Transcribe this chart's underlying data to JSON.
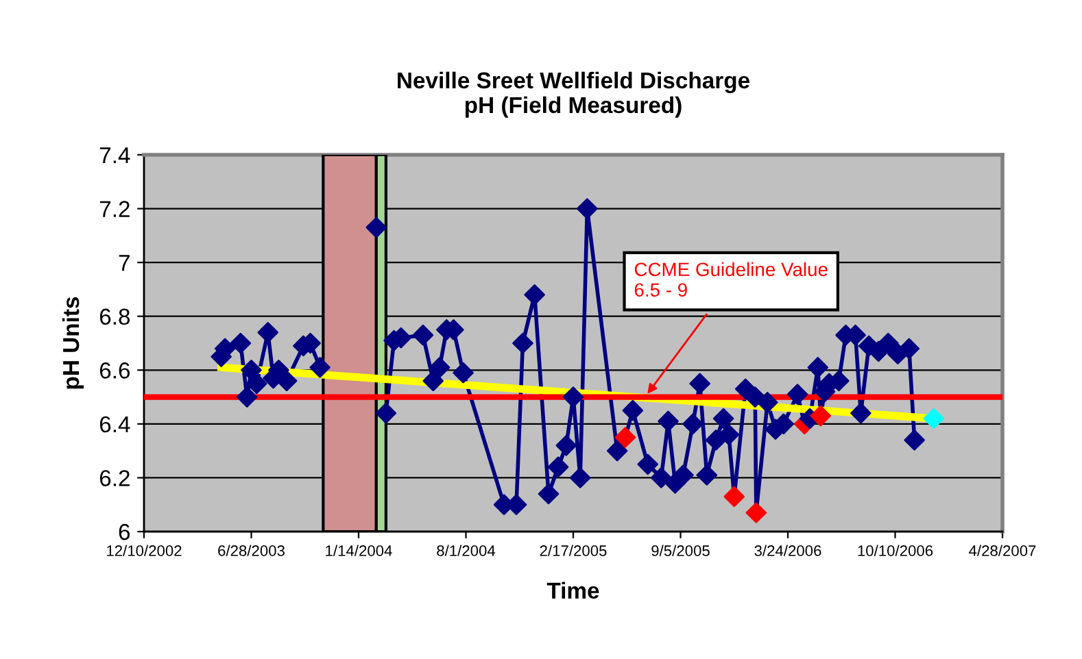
{
  "chart_data": {
    "type": "line",
    "title": "Neville Sreet Wellfield Discharge\npH (Field Measured)",
    "xlabel": "Time",
    "ylabel": "pH Units",
    "xlim": [
      "2002-12-10",
      "2007-04-28"
    ],
    "xticks": [
      {
        "value": "2002-12-10",
        "label": "12/10/2002"
      },
      {
        "value": "2003-06-28",
        "label": "6/28/2003"
      },
      {
        "value": "2004-01-14",
        "label": "1/14/2004"
      },
      {
        "value": "2004-08-01",
        "label": "8/1/2004"
      },
      {
        "value": "2005-02-17",
        "label": "2/17/2005"
      },
      {
        "value": "2005-09-05",
        "label": "9/5/2005"
      },
      {
        "value": "2006-03-24",
        "label": "3/24/2006"
      },
      {
        "value": "2006-10-10",
        "label": "10/10/2006"
      },
      {
        "value": "2007-04-28",
        "label": "4/28/2007"
      }
    ],
    "ylim": [
      6,
      7.4
    ],
    "yticks": [
      6,
      6.2,
      6.4,
      6.6,
      6.8,
      7,
      7.2,
      7.4
    ],
    "grid": "y",
    "legend": false,
    "marker": "diamond",
    "line_style": "solid",
    "series": [
      {
        "color": "#000080",
        "x": [
          "2003-05-03",
          "2003-05-10",
          "2003-06-08",
          "2003-06-20",
          "2003-06-28",
          "2003-07-08",
          "2003-07-29",
          "2003-08-08",
          "2003-08-18",
          "2003-09-02",
          "2003-10-03",
          "2003-10-16",
          "2003-11-03",
          "2004-02-16",
          "2004-03-05",
          "2004-03-20",
          "2004-04-02",
          "2004-05-13",
          "2004-06-01",
          "2004-06-13",
          "2004-06-26",
          "2004-07-09",
          "2004-07-27",
          "2004-10-11",
          "2004-11-03",
          "2004-11-15",
          "2004-12-07",
          "2005-01-02",
          "2005-01-20",
          "2005-02-04",
          "2005-02-17",
          "2005-03-02",
          "2005-03-15",
          "2005-05-10",
          "2005-05-25",
          "2005-06-08",
          "2005-07-06",
          "2005-07-31",
          "2005-08-13",
          "2005-08-26",
          "2005-09-10",
          "2005-09-28",
          "2005-10-11",
          "2005-10-24",
          "2005-11-10",
          "2005-11-24",
          "2005-12-04",
          "2005-12-14",
          "2006-01-04",
          "2006-01-22",
          "2006-01-24",
          "2006-02-14",
          "2006-03-01",
          "2006-03-16",
          "2006-04-11",
          "2006-04-24",
          "2006-05-04",
          "2006-05-19",
          "2006-05-24",
          "2006-06-01",
          "2006-06-09",
          "2006-06-27",
          "2006-07-10",
          "2006-07-28",
          "2006-08-07",
          "2006-08-22",
          "2006-09-09",
          "2006-09-27",
          "2006-10-15",
          "2006-11-05",
          "2006-11-15"
        ],
        "values": [
          6.65,
          6.68,
          6.7,
          6.5,
          6.6,
          6.55,
          6.74,
          6.57,
          6.6,
          6.56,
          6.69,
          6.7,
          6.61,
          7.13,
          6.44,
          6.71,
          6.72,
          6.73,
          6.56,
          6.61,
          6.75,
          6.75,
          6.59,
          6.1,
          6.1,
          6.7,
          6.88,
          6.14,
          6.24,
          6.32,
          6.5,
          6.2,
          7.2,
          6.3,
          6.35,
          6.45,
          6.25,
          6.2,
          6.41,
          6.18,
          6.21,
          6.4,
          6.55,
          6.21,
          6.34,
          6.42,
          6.36,
          6.13,
          6.53,
          6.5,
          6.07,
          6.48,
          6.38,
          6.4,
          6.51,
          6.4,
          6.42,
          6.61,
          6.43,
          6.52,
          6.55,
          6.56,
          6.73,
          6.73,
          6.44,
          6.69,
          6.67,
          6.7,
          6.66,
          6.68,
          6.34
        ],
        "colors": [
          "#000080",
          "#000080",
          "#000080",
          "#000080",
          "#000080",
          "#000080",
          "#000080",
          "#000080",
          "#000080",
          "#000080",
          "#000080",
          "#000080",
          "#000080",
          "#000080",
          "#000080",
          "#000080",
          "#000080",
          "#000080",
          "#000080",
          "#000080",
          "#000080",
          "#000080",
          "#000080",
          "#000080",
          "#000080",
          "#000080",
          "#000080",
          "#000080",
          "#000080",
          "#000080",
          "#000080",
          "#000080",
          "#000080",
          "#000080",
          "#ff0000",
          "#000080",
          "#000080",
          "#000080",
          "#000080",
          "#000080",
          "#000080",
          "#000080",
          "#000080",
          "#000080",
          "#000080",
          "#000080",
          "#000080",
          "#ff0000",
          "#000080",
          "#000080",
          "#ff0000",
          "#000080",
          "#000080",
          "#000080",
          "#000080",
          "#ff0000",
          "#000080",
          "#000080",
          "#ff0000",
          "#000080",
          "#000080",
          "#000080",
          "#000080",
          "#000080",
          "#000080",
          "#000080",
          "#000080",
          "#000080",
          "#000080",
          "#000080",
          "#000080"
        ]
      },
      {
        "color": "#ffff00",
        "marker": "none",
        "x": [
          "2003-05-03",
          "2006-12-21"
        ],
        "values": [
          6.61,
          6.42
        ]
      },
      {
        "type": "scatter",
        "color": "#00ffff",
        "x": [
          "2006-12-21"
        ],
        "values": [
          6.42
        ]
      }
    ],
    "ref_lines": [
      {
        "axis": "y",
        "value": 6.5,
        "color": "#ff0000",
        "line_style": "solid"
      }
    ],
    "bands": [
      {
        "axis": "x",
        "from": "2003-11-09",
        "to": "2004-02-16",
        "color": "#d09090"
      },
      {
        "axis": "x",
        "from": "2004-02-16",
        "to": "2004-03-05",
        "color": "#a0d890"
      }
    ],
    "annotations": [
      {
        "text": "CCME Guideline Value\n6.5 - 9",
        "x": "2005-07-01",
        "y": 6.5
      }
    ]
  }
}
